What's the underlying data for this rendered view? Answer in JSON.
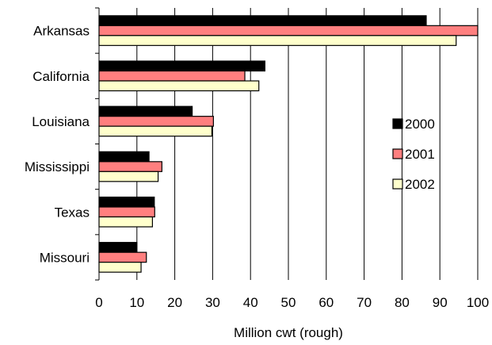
{
  "chart_data": {
    "type": "bar",
    "orientation": "horizontal",
    "categories": [
      "Arkansas",
      "California",
      "Louisiana",
      "Mississippi",
      "Texas",
      "Missouri"
    ],
    "series": [
      {
        "name": "2000",
        "color": "#000000",
        "values": [
          86.4,
          43.8,
          24.6,
          13.2,
          14.6,
          10.0
        ]
      },
      {
        "name": "2001",
        "color": "#ff7f7f",
        "values": [
          101.0,
          38.5,
          30.2,
          16.6,
          14.7,
          12.5
        ]
      },
      {
        "name": "2002",
        "color": "#ffffcc",
        "values": [
          94.3,
          42.2,
          29.8,
          15.6,
          14.1,
          11.1
        ]
      }
    ],
    "xlabel": "Million cwt (rough)",
    "ylabel": "",
    "title": "",
    "xlim": [
      0,
      100
    ],
    "xticks": [
      0,
      10,
      20,
      30,
      40,
      50,
      60,
      70,
      80,
      90,
      100
    ],
    "grid": "vertical",
    "legend_position": "right"
  }
}
